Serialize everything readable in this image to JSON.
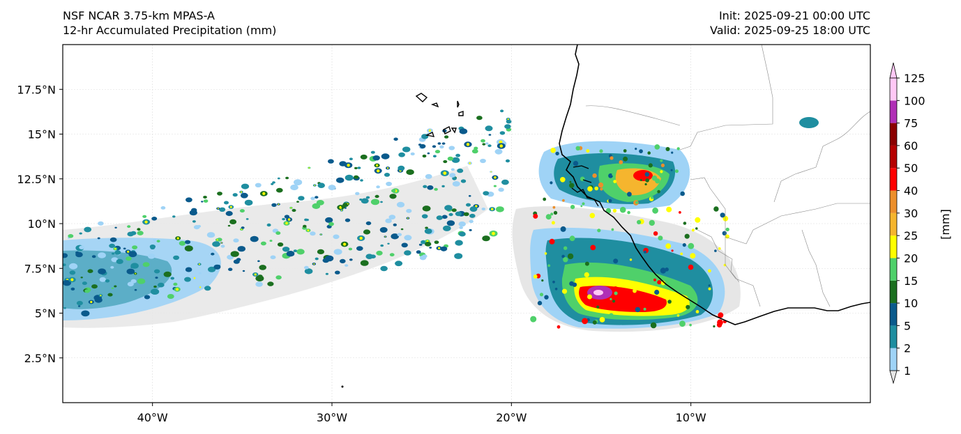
{
  "header": {
    "model": "NSF NCAR 3.75-km MPAS-A",
    "field": "12-hr Accumulated Precipitation (mm)",
    "init": "Init: 2025-09-21 00:00 UTC",
    "valid": "Valid: 2025-09-25 18:00 UTC"
  },
  "map": {
    "lon_range": [
      -45,
      0
    ],
    "lat_range": [
      0,
      20
    ],
    "lon_ticks": [
      {
        "lon": -40,
        "label": "40°W"
      },
      {
        "lon": -30,
        "label": "30°W"
      },
      {
        "lon": -20,
        "label": "20°W"
      },
      {
        "lon": -10,
        "label": "10°W"
      }
    ],
    "lat_ticks": [
      {
        "lat": 17.5,
        "label": "17.5°N"
      },
      {
        "lat": 15,
        "label": "15°N"
      },
      {
        "lat": 12.5,
        "label": "12.5°N"
      },
      {
        "lat": 10,
        "label": "10°N"
      },
      {
        "lat": 7.5,
        "label": "7.5°N"
      },
      {
        "lat": 5,
        "label": "5°N"
      },
      {
        "lat": 2.5,
        "label": "2.5°N"
      }
    ]
  },
  "colorbar": {
    "unit_label": "[mm]",
    "levels": [
      {
        "value": "1",
        "color": "#e6e6e6"
      },
      {
        "value": "2",
        "color": "#9fd3f6"
      },
      {
        "value": "5",
        "color": "#1f8ea0"
      },
      {
        "value": "10",
        "color": "#0a5a8c"
      },
      {
        "value": "15",
        "color": "#1b6f1f"
      },
      {
        "value": "20",
        "color": "#4fd06a"
      },
      {
        "value": "25",
        "color": "#ffff00"
      },
      {
        "value": "30",
        "color": "#f5b52e"
      },
      {
        "value": "40",
        "color": "#ec8f2b"
      },
      {
        "value": "50",
        "color": "#ff0000"
      },
      {
        "value": "60",
        "color": "#b50000"
      },
      {
        "value": "75",
        "color": "#8b0000"
      },
      {
        "value": "100",
        "color": "#b02fb6"
      },
      {
        "value": "125",
        "color": "#ffc8f5"
      }
    ]
  }
}
